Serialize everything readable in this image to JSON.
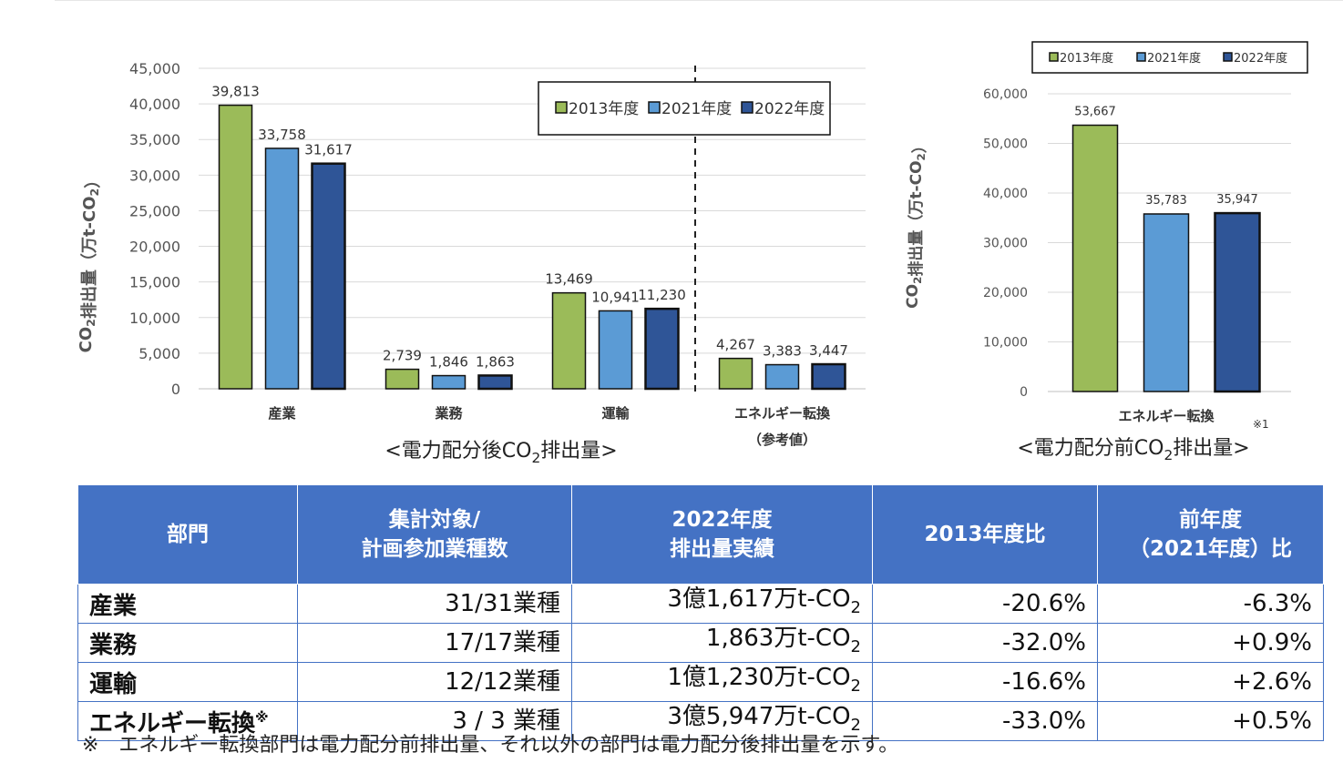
{
  "colors": {
    "y2013": "#9bbb59",
    "y2021": "#5b9bd5",
    "y2022": "#2f5597",
    "header": "#4472c4"
  },
  "chart_data": [
    {
      "type": "bar",
      "title": "<電力配分後CO2排出量>",
      "ylabel": "CO2排出量（万t-CO2）",
      "ylim": [
        0,
        45000
      ],
      "yticks": [
        "0",
        "5,000",
        "10,000",
        "15,000",
        "20,000",
        "25,000",
        "30,000",
        "35,000",
        "40,000",
        "45,000"
      ],
      "grid": true,
      "legend_position": "top-right",
      "categories": [
        "産業",
        "業務",
        "運輸",
        "エネルギー転換"
      ],
      "category_sublabels": [
        "",
        "",
        "",
        "（参考値）"
      ],
      "series": [
        {
          "name": "2013年度",
          "values": [
            39813,
            2739,
            13469,
            4267
          ],
          "labels": [
            "39,813",
            "2,739",
            "13,469",
            "4,267"
          ]
        },
        {
          "name": "2021年度",
          "values": [
            33758,
            1846,
            10941,
            3383
          ],
          "labels": [
            "33,758",
            "1,846",
            "10,941",
            "3,383"
          ]
        },
        {
          "name": "2022年度",
          "values": [
            31617,
            1863,
            11230,
            3447
          ],
          "labels": [
            "31,617",
            "1,863",
            "11,230",
            "3,447"
          ]
        }
      ]
    },
    {
      "type": "bar",
      "title": "<電力配分前CO2排出量>",
      "ylabel": "CO2排出量（万t-CO2）",
      "ylim": [
        0,
        60000
      ],
      "yticks": [
        "0",
        "10,000",
        "20,000",
        "30,000",
        "40,000",
        "50,000",
        "60,000"
      ],
      "grid": true,
      "legend_position": "top",
      "categories": [
        "エネルギー転換"
      ],
      "note": "※1",
      "series": [
        {
          "name": "2013年度",
          "values": [
            53667
          ],
          "labels": [
            "53,667"
          ]
        },
        {
          "name": "2021年度",
          "values": [
            35783
          ],
          "labels": [
            "35,783"
          ]
        },
        {
          "name": "2022年度",
          "values": [
            35947
          ],
          "labels": [
            "35,947"
          ]
        }
      ]
    }
  ],
  "table": {
    "headers": [
      "部門",
      "集計対象/\n計画参加業種数",
      "2022年度\n排出量実績",
      "2013年度比",
      "前年度\n（2021年度）比"
    ],
    "rows": [
      {
        "sector": "産業",
        "mark": "",
        "count": "31/31業種",
        "emission": "3億1,617万t-CO",
        "vs2013": "-20.6%",
        "vsPrev": "-6.3%"
      },
      {
        "sector": "業務",
        "mark": "",
        "count": "17/17業種",
        "emission": "1,863万t-CO",
        "vs2013": "-32.0%",
        "vsPrev": "+0.9%"
      },
      {
        "sector": "運輸",
        "mark": "",
        "count": "12/12業種",
        "emission": "1億1,230万t-CO",
        "vs2013": "-16.6%",
        "vsPrev": "+2.6%"
      },
      {
        "sector": "エネルギー転換",
        "mark": "※",
        "count": "3 / 3 業種",
        "emission": "3億5,947万t-CO",
        "vs2013": "-33.0%",
        "vsPrev": "+0.5%"
      }
    ],
    "subscript": "2"
  },
  "footnote": "※　エネルギー転換部門は電力配分前排出量、それ以外の部門は電力配分後排出量を示す。"
}
